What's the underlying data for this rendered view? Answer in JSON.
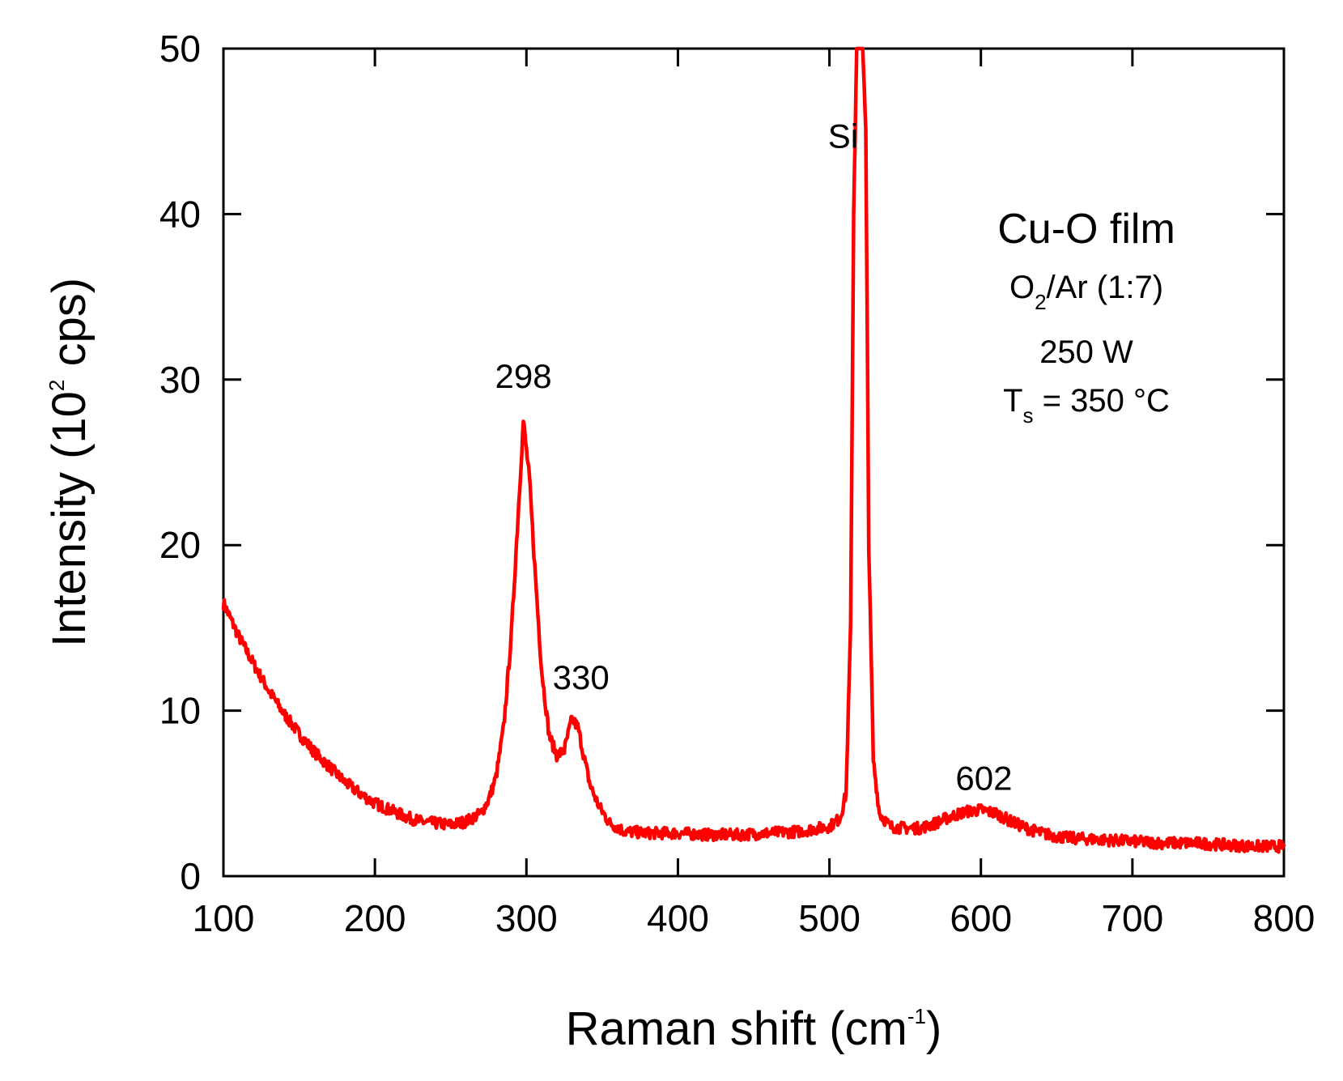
{
  "chart_data": {
    "type": "line",
    "title": "",
    "xlabel": {
      "text": "Raman shift (cm",
      "sup": "-1",
      "tail": ")"
    },
    "ylabel": {
      "text": "Intensity (10",
      "sup": "2",
      "tail": " cps)"
    },
    "xlim": [
      100,
      800
    ],
    "ylim": [
      0,
      50
    ],
    "xticks": [
      100,
      200,
      300,
      400,
      500,
      600,
      700,
      800
    ],
    "yticks": [
      0,
      10,
      20,
      30,
      40,
      50
    ],
    "grid": false,
    "series": [
      {
        "name": "Cu-O film",
        "color": "#ff0000",
        "x": [
          100,
          110,
          120,
          130,
          140,
          150,
          160,
          170,
          180,
          190,
          200,
          210,
          220,
          230,
          240,
          250,
          260,
          270,
          275,
          280,
          285,
          290,
          294,
          298,
          302,
          306,
          310,
          315,
          320,
          325,
          330,
          334,
          338,
          342,
          348,
          355,
          365,
          380,
          400,
          420,
          440,
          460,
          480,
          500,
          507,
          511,
          514,
          516,
          518,
          520,
          522,
          524,
          526,
          529,
          533,
          540,
          550,
          560,
          570,
          580,
          590,
          600,
          610,
          620,
          630,
          640,
          650,
          660,
          680,
          700,
          720,
          740,
          760,
          780,
          800
        ],
        "y": [
          16.5,
          14.5,
          12.8,
          11.2,
          9.8,
          8.6,
          7.5,
          6.6,
          5.7,
          5.0,
          4.4,
          4.0,
          3.6,
          3.3,
          3.2,
          3.1,
          3.3,
          3.8,
          4.6,
          6.0,
          9.0,
          14.5,
          21.0,
          27.5,
          24.0,
          18.0,
          12.5,
          8.5,
          7.3,
          7.6,
          9.5,
          9.0,
          7.2,
          5.5,
          4.2,
          3.2,
          2.7,
          2.6,
          2.6,
          2.5,
          2.5,
          2.6,
          2.7,
          3.0,
          3.5,
          5.0,
          15.0,
          40.0,
          50.0,
          50.0,
          50.0,
          45.0,
          20.0,
          7.0,
          3.8,
          3.0,
          2.9,
          2.9,
          3.2,
          3.6,
          3.9,
          4.0,
          3.8,
          3.3,
          2.9,
          2.6,
          2.4,
          2.3,
          2.2,
          2.1,
          2.0,
          2.0,
          1.9,
          1.8,
          1.8
        ]
      }
    ],
    "peak_labels": [
      {
        "text": "298",
        "x": 298,
        "y": 29.5
      },
      {
        "text": "330",
        "x": 336,
        "y": 11.3
      },
      {
        "text": "Si",
        "x": 509,
        "y": 44.0
      },
      {
        "text": "602",
        "x": 602,
        "y": 5.2
      }
    ],
    "annotation": {
      "title": "Cu-O film",
      "gas_prefix": "O",
      "gas_sub": "2",
      "gas_suffix": "/Ar (1:7)",
      "power": "250 W",
      "temp_prefix": "T",
      "temp_sub": "s",
      "temp_suffix": " = 350 °C"
    },
    "line_color": "#ff0000",
    "axis_color": "#000000"
  }
}
